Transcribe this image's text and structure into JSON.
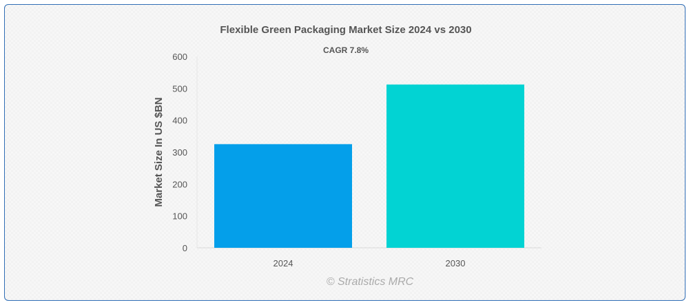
{
  "chart_data": {
    "type": "bar",
    "title": "Flexible Green Packaging Market Size 2024 vs 2030",
    "subtitle": "CAGR 7.8%",
    "xlabel": "",
    "ylabel": "Market Size In US $BN",
    "categories": [
      "2024",
      "2030"
    ],
    "values": [
      325,
      512
    ],
    "colors": [
      "#049fea",
      "#02d3d3"
    ],
    "ylim": [
      0,
      600
    ],
    "yticks": [
      0,
      100,
      200,
      300,
      400,
      500,
      600
    ],
    "grid": false,
    "legend": "none"
  },
  "credit": "© Stratistics MRC"
}
